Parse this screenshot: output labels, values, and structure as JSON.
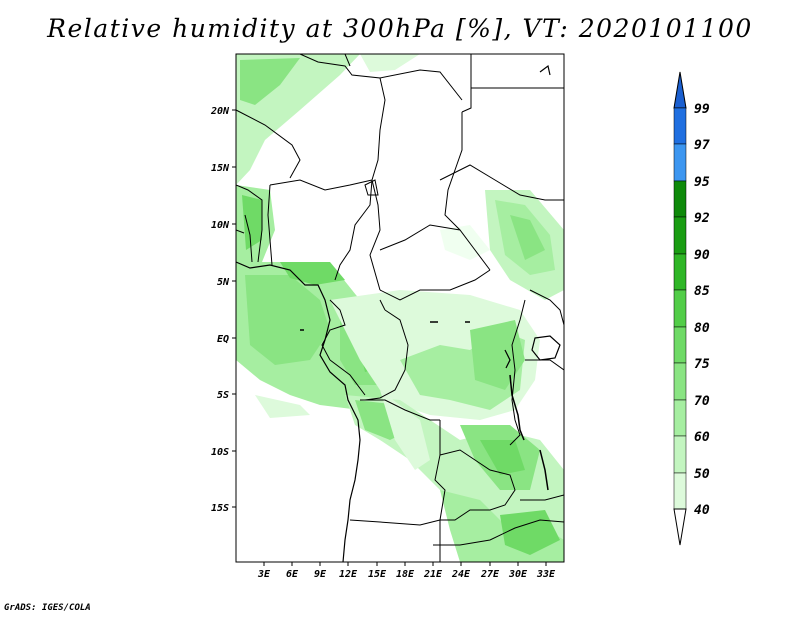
{
  "title": "Relative humidity at 300hPa [%], VT: 2020101100",
  "credit": "GrADS: IGES/COLA",
  "map": {
    "lat_labels": [
      "20N",
      "15N",
      "10N",
      "5N",
      "EQ",
      "5S",
      "10S",
      "15S"
    ],
    "lon_labels": [
      "3E",
      "6E",
      "9E",
      "12E",
      "15E",
      "18E",
      "21E",
      "24E",
      "27E",
      "30E",
      "33E"
    ],
    "variable": "relative humidity",
    "level": "300hPa",
    "unit": "%"
  },
  "colorbar": {
    "levels": [
      "40",
      "50",
      "60",
      "70",
      "75",
      "80",
      "85",
      "90",
      "92",
      "95",
      "97",
      "99"
    ],
    "colors": [
      "#f0fff0",
      "#ddfadb",
      "#c3f5c0",
      "#a6eea1",
      "#8ae483",
      "#6fda66",
      "#52cd48",
      "#2fb626",
      "#199d13",
      "#0e8a0a",
      "#3c96f0",
      "#1f6fe0",
      "#1a5fd0"
    ]
  }
}
